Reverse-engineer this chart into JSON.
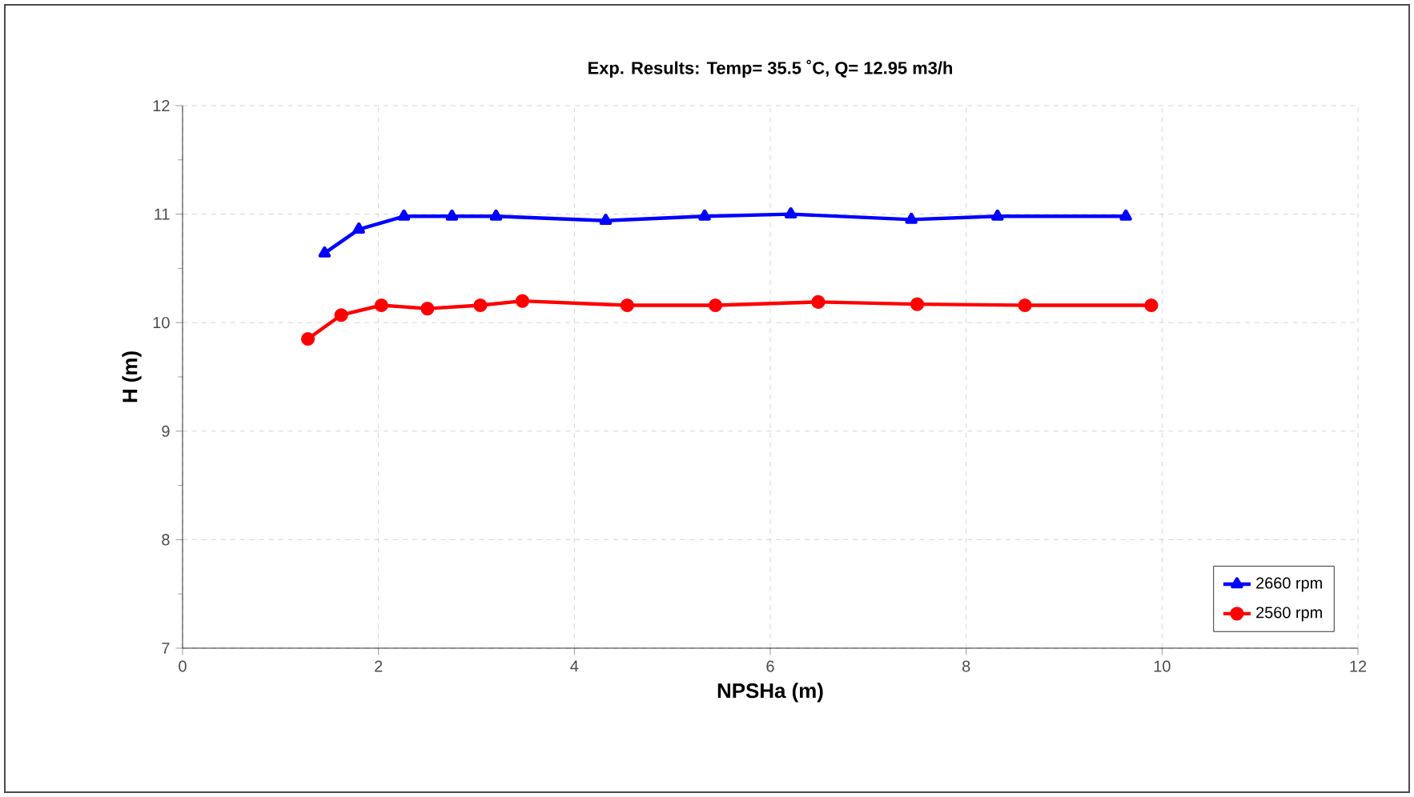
{
  "chart_data": {
    "type": "line",
    "title": "Exp. Results:  Temp= 35.5 ˚C,  Q= 12.95 m3/h",
    "xlabel": "NPSHa (m)",
    "ylabel": "H (m)",
    "xlim": [
      0,
      12
    ],
    "ylim": [
      7,
      12
    ],
    "xticks": [
      0,
      2,
      4,
      6,
      8,
      10,
      12
    ],
    "yticks": [
      7,
      8,
      9,
      10,
      11,
      12
    ],
    "grid": true,
    "legend": "bottom right",
    "series": [
      {
        "name": "2660 rpm",
        "color": "#0000ff",
        "marker": "triangle",
        "x": [
          1.45,
          1.8,
          2.26,
          2.75,
          3.2,
          4.32,
          5.33,
          6.21,
          7.44,
          8.32,
          9.63
        ],
        "values": [
          10.64,
          10.86,
          10.98,
          10.98,
          10.98,
          10.94,
          10.98,
          11.0,
          10.95,
          10.98,
          10.98
        ]
      },
      {
        "name": "2560 rpm",
        "color": "#ff0000",
        "marker": "circle",
        "x": [
          1.28,
          1.62,
          2.03,
          2.5,
          3.04,
          3.47,
          4.54,
          5.44,
          6.49,
          7.5,
          8.6,
          9.89
        ],
        "values": [
          9.85,
          10.07,
          10.16,
          10.13,
          10.16,
          10.2,
          10.16,
          10.16,
          10.19,
          10.17,
          10.16,
          10.16
        ]
      }
    ]
  }
}
